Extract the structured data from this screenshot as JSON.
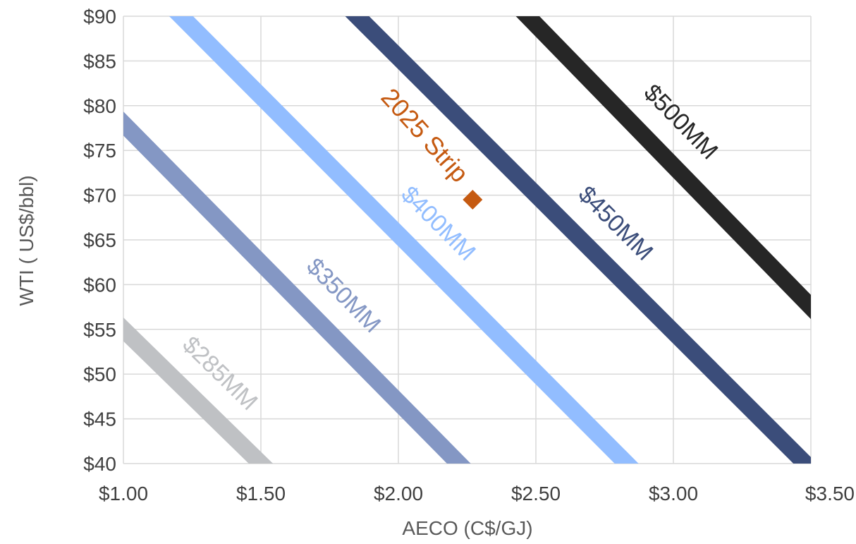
{
  "chart_data": {
    "type": "line",
    "xlabel": "AECO (C$/GJ)",
    "ylabel": "WTI ( US$/bbl)",
    "xlim": [
      1.0,
      3.5
    ],
    "ylim": [
      40,
      90
    ],
    "x_ticks": [
      1.0,
      1.5,
      2.0,
      2.5,
      3.0,
      3.5
    ],
    "x_tick_labels": [
      "$1.00",
      "$1.50",
      "$2.00",
      "$2.50",
      "$3.00",
      "$3.50"
    ],
    "y_ticks": [
      40,
      45,
      50,
      55,
      60,
      65,
      70,
      75,
      80,
      85,
      90
    ],
    "y_tick_labels": [
      "$40",
      "$45",
      "$50",
      "$55",
      "$60",
      "$65",
      "$70",
      "$75",
      "$80",
      "$85",
      "$90"
    ],
    "grid": true,
    "series": [
      {
        "name": "$285MM",
        "color": "#bfc1c4",
        "points": [
          [
            1.0,
            55
          ],
          [
            1.5,
            40
          ]
        ]
      },
      {
        "name": "$350MM",
        "color": "#8497c4",
        "points": [
          [
            1.0,
            78
          ],
          [
            2.22,
            40
          ]
        ]
      },
      {
        "name": "$400MM",
        "color": "#92bdff",
        "points": [
          [
            1.21,
            90
          ],
          [
            2.83,
            40
          ]
        ]
      },
      {
        "name": "$450MM",
        "color": "#3b4d7a",
        "points": [
          [
            1.85,
            90
          ],
          [
            3.48,
            40
          ]
        ]
      },
      {
        "name": "$500MM",
        "color": "#262626",
        "points": [
          [
            2.47,
            90
          ],
          [
            3.5,
            57.5
          ]
        ]
      }
    ],
    "points": [
      {
        "name": "2025 Strip",
        "x": 2.27,
        "y": 69.5,
        "color": "#c55a11",
        "marker": "diamond"
      }
    ]
  }
}
